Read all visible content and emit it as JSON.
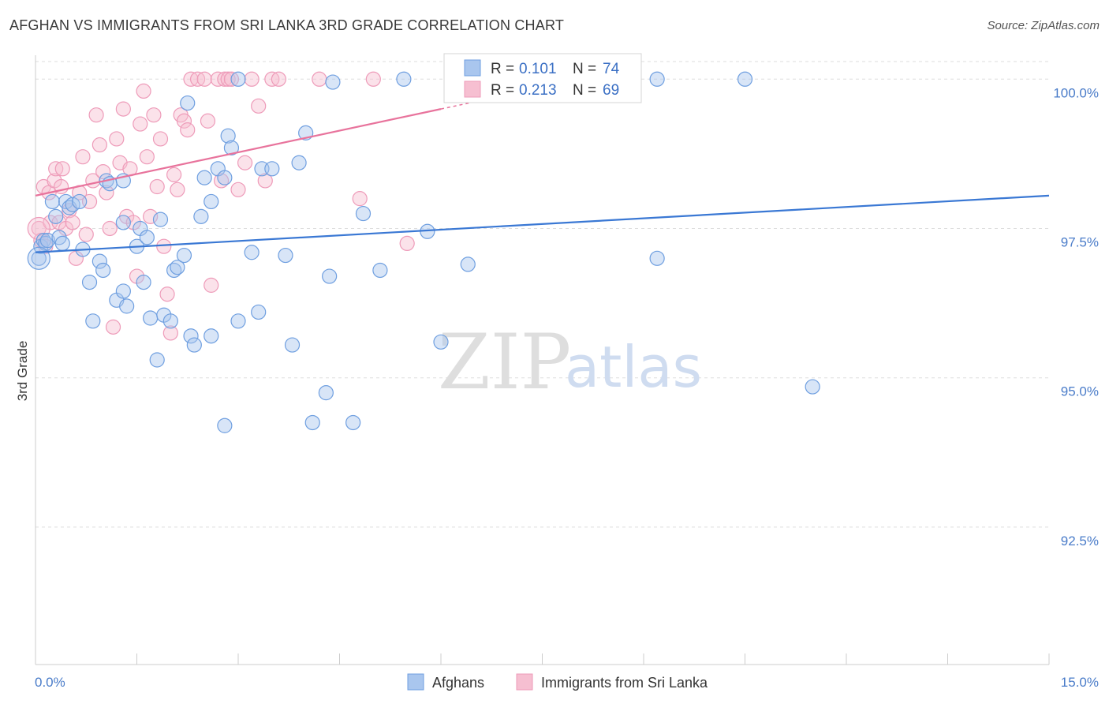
{
  "title": "AFGHAN VS IMMIGRANTS FROM SRI LANKA 3RD GRADE CORRELATION CHART",
  "source": "Source: ZipAtlas.com",
  "watermark": {
    "zip": "ZIP",
    "atlas": "atlas"
  },
  "colors": {
    "blue": "#3a78d4",
    "blue_fill": "#a9c6ee",
    "blue_stroke": "#6f9fe0",
    "pink": "#e8739c",
    "pink_fill": "#f6bfd1",
    "pink_stroke": "#ee9bb9",
    "grid": "#dddddd",
    "tick_text": "#4a7cc9"
  },
  "legend": {
    "rows": [
      {
        "r_label": "R =",
        "r_value": "0.101",
        "n_label": "N =",
        "n_value": "74"
      },
      {
        "r_label": "R =",
        "r_value": "0.213",
        "n_label": "N =",
        "n_value": "69"
      }
    ]
  },
  "chart_data": {
    "type": "scatter",
    "title": "AFGHAN VS IMMIGRANTS FROM SRI LANKA 3RD GRADE CORRELATION CHART",
    "xlabel": "",
    "ylabel": "3rd Grade",
    "xlim": [
      0.0,
      15.0
    ],
    "ylim": [
      90.2,
      100.4
    ],
    "x_tick_labels": [
      "0.0%",
      "15.0%"
    ],
    "y_ticks": [
      {
        "value": 100.0,
        "label": "100.0%"
      },
      {
        "value": 97.5,
        "label": "97.5%"
      },
      {
        "value": 95.0,
        "label": "95.0%"
      },
      {
        "value": 92.5,
        "label": "92.5%"
      }
    ],
    "grid": true,
    "series": [
      {
        "name": "Afghans",
        "color": "blue",
        "r": 0.101,
        "n": 74,
        "trend": {
          "x": [
            0.0,
            15.0
          ],
          "y": [
            97.1,
            98.05
          ]
        },
        "points": [
          [
            0.05,
            97.0
          ],
          [
            0.08,
            97.2
          ],
          [
            0.12,
            97.3
          ],
          [
            0.15,
            97.25
          ],
          [
            0.18,
            97.3
          ],
          [
            0.25,
            97.95
          ],
          [
            0.3,
            97.7
          ],
          [
            0.35,
            97.35
          ],
          [
            0.4,
            97.25
          ],
          [
            0.45,
            97.95
          ],
          [
            0.5,
            97.85
          ],
          [
            0.55,
            97.9
          ],
          [
            0.65,
            97.95
          ],
          [
            0.7,
            97.15
          ],
          [
            0.8,
            96.6
          ],
          [
            0.85,
            95.95
          ],
          [
            0.95,
            96.95
          ],
          [
            1.0,
            96.8
          ],
          [
            1.05,
            98.3
          ],
          [
            1.1,
            98.25
          ],
          [
            1.2,
            96.3
          ],
          [
            1.3,
            97.6
          ],
          [
            1.3,
            98.3
          ],
          [
            1.3,
            96.45
          ],
          [
            1.35,
            96.2
          ],
          [
            1.5,
            97.2
          ],
          [
            1.55,
            97.5
          ],
          [
            1.6,
            96.6
          ],
          [
            1.65,
            97.35
          ],
          [
            1.7,
            96.0
          ],
          [
            1.8,
            95.3
          ],
          [
            1.85,
            97.65
          ],
          [
            1.9,
            96.05
          ],
          [
            2.0,
            95.95
          ],
          [
            2.05,
            96.8
          ],
          [
            2.1,
            96.85
          ],
          [
            2.2,
            97.05
          ],
          [
            2.25,
            99.6
          ],
          [
            2.3,
            95.7
          ],
          [
            2.35,
            95.55
          ],
          [
            2.45,
            97.7
          ],
          [
            2.5,
            98.35
          ],
          [
            2.6,
            95.7
          ],
          [
            2.6,
            97.95
          ],
          [
            2.7,
            98.5
          ],
          [
            2.8,
            98.35
          ],
          [
            2.8,
            94.2
          ],
          [
            2.85,
            99.05
          ],
          [
            2.9,
            98.85
          ],
          [
            3.0,
            95.95
          ],
          [
            3.0,
            100.0
          ],
          [
            3.2,
            97.1
          ],
          [
            3.3,
            96.1
          ],
          [
            3.35,
            98.5
          ],
          [
            3.5,
            98.5
          ],
          [
            3.7,
            97.05
          ],
          [
            3.8,
            95.55
          ],
          [
            3.9,
            98.6
          ],
          [
            4.0,
            99.1
          ],
          [
            4.1,
            94.25
          ],
          [
            4.3,
            94.75
          ],
          [
            4.35,
            96.7
          ],
          [
            4.4,
            99.95
          ],
          [
            4.7,
            94.25
          ],
          [
            4.85,
            97.75
          ],
          [
            5.1,
            96.8
          ],
          [
            5.45,
            100.0
          ],
          [
            5.8,
            97.45
          ],
          [
            6.0,
            95.6
          ],
          [
            6.4,
            96.9
          ],
          [
            9.2,
            100.0
          ],
          [
            9.2,
            97.0
          ],
          [
            10.5,
            100.0
          ],
          [
            11.5,
            94.85
          ]
        ]
      },
      {
        "name": "Immigrants from Sri Lanka",
        "color": "pink",
        "r": 0.213,
        "n": 69,
        "trend": {
          "x": [
            0.0,
            6.0
          ],
          "y": [
            98.05,
            99.5
          ]
        },
        "points": [
          [
            0.05,
            97.5
          ],
          [
            0.08,
            97.3
          ],
          [
            0.12,
            98.2
          ],
          [
            0.15,
            97.2
          ],
          [
            0.2,
            98.1
          ],
          [
            0.22,
            97.6
          ],
          [
            0.28,
            98.3
          ],
          [
            0.3,
            98.5
          ],
          [
            0.35,
            97.6
          ],
          [
            0.38,
            98.2
          ],
          [
            0.4,
            98.5
          ],
          [
            0.45,
            97.5
          ],
          [
            0.5,
            97.8
          ],
          [
            0.55,
            97.6
          ],
          [
            0.6,
            97.0
          ],
          [
            0.65,
            98.1
          ],
          [
            0.7,
            98.7
          ],
          [
            0.75,
            97.4
          ],
          [
            0.8,
            97.95
          ],
          [
            0.85,
            98.3
          ],
          [
            0.9,
            99.4
          ],
          [
            0.95,
            98.9
          ],
          [
            1.0,
            98.45
          ],
          [
            1.05,
            98.1
          ],
          [
            1.1,
            97.5
          ],
          [
            1.15,
            95.85
          ],
          [
            1.2,
            99.0
          ],
          [
            1.25,
            98.6
          ],
          [
            1.3,
            99.5
          ],
          [
            1.35,
            97.7
          ],
          [
            1.4,
            98.5
          ],
          [
            1.45,
            97.6
          ],
          [
            1.5,
            96.7
          ],
          [
            1.55,
            99.25
          ],
          [
            1.6,
            99.8
          ],
          [
            1.65,
            98.7
          ],
          [
            1.7,
            97.7
          ],
          [
            1.75,
            99.4
          ],
          [
            1.8,
            98.2
          ],
          [
            1.85,
            99.0
          ],
          [
            1.9,
            97.2
          ],
          [
            1.95,
            96.4
          ],
          [
            2.0,
            95.75
          ],
          [
            2.05,
            98.4
          ],
          [
            2.1,
            98.15
          ],
          [
            2.15,
            99.4
          ],
          [
            2.2,
            99.3
          ],
          [
            2.25,
            99.15
          ],
          [
            2.3,
            100.0
          ],
          [
            2.4,
            100.0
          ],
          [
            2.5,
            100.0
          ],
          [
            2.55,
            99.3
          ],
          [
            2.6,
            96.55
          ],
          [
            2.7,
            100.0
          ],
          [
            2.75,
            98.3
          ],
          [
            2.8,
            100.0
          ],
          [
            2.85,
            100.0
          ],
          [
            2.9,
            100.0
          ],
          [
            3.0,
            98.15
          ],
          [
            3.1,
            98.6
          ],
          [
            3.2,
            100.0
          ],
          [
            3.3,
            99.55
          ],
          [
            3.4,
            98.3
          ],
          [
            3.5,
            100.0
          ],
          [
            3.6,
            100.0
          ],
          [
            4.2,
            100.0
          ],
          [
            4.8,
            98.0
          ],
          [
            5.0,
            100.0
          ],
          [
            5.5,
            97.25
          ]
        ]
      }
    ]
  },
  "bottom_legend": {
    "items": [
      "Afghans",
      "Immigrants from Sri Lanka"
    ]
  }
}
